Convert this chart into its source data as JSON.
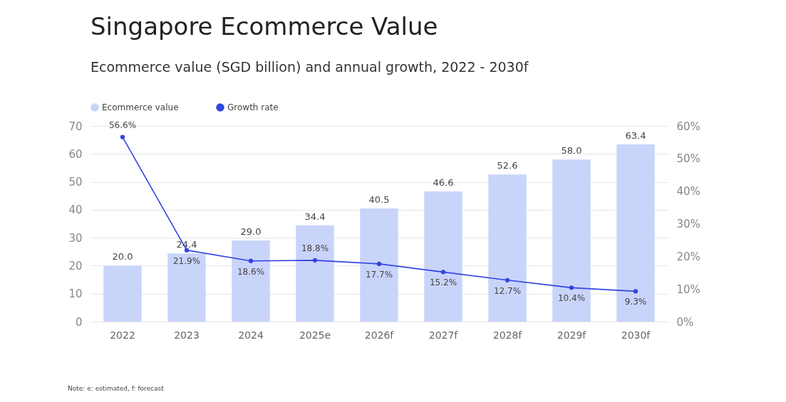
{
  "chart_data": {
    "type": "bar",
    "title": "Singapore Ecommerce Value",
    "subtitle": "Ecommerce value (SGD billion) and annual growth, 2022 - 2030f",
    "categories": [
      "2022",
      "2023",
      "2024",
      "2025e",
      "2026f",
      "2027f",
      "2028f",
      "2029f",
      "2030f"
    ],
    "series": [
      {
        "name": "Ecommerce value",
        "color": "#c9d4fb",
        "values": [
          20.0,
          24.4,
          29.0,
          34.4,
          40.5,
          46.6,
          52.6,
          58.0,
          63.4
        ],
        "value_labels": [
          "20.0",
          "24.4",
          "29.0",
          "34.4",
          "40.5",
          "46.6",
          "52.6",
          "58.0",
          "63.4"
        ]
      },
      {
        "name": "Growth rate",
        "type": "line",
        "axis": "y2",
        "color": "#3346e0",
        "marker": "circle",
        "values": [
          56.6,
          21.9,
          18.6,
          18.8,
          17.7,
          15.2,
          12.7,
          10.4,
          9.3
        ],
        "value_labels": [
          "56.6%",
          "21.9%",
          "18.6%",
          "18.8%",
          "17.7%",
          "15.2%",
          "12.7%",
          "10.4%",
          "9.3%"
        ]
      }
    ],
    "ylim": [
      0,
      70
    ],
    "yticks": [
      0,
      10,
      20,
      30,
      40,
      50,
      60,
      70
    ],
    "y2lim": [
      0,
      60
    ],
    "y2ticks": [
      {
        "value": 0,
        "label": "0%"
      },
      {
        "value": 10,
        "label": "10%"
      },
      {
        "value": 20,
        "label": "20%"
      },
      {
        "value": 30,
        "label": "30%"
      },
      {
        "value": 40,
        "label": "40%"
      },
      {
        "value": 50,
        "label": "50%"
      },
      {
        "value": 60,
        "label": "60%"
      }
    ],
    "grid": "y",
    "legend": "top left",
    "annotations": [
      "Note: e: estimated, f: forecast"
    ]
  }
}
